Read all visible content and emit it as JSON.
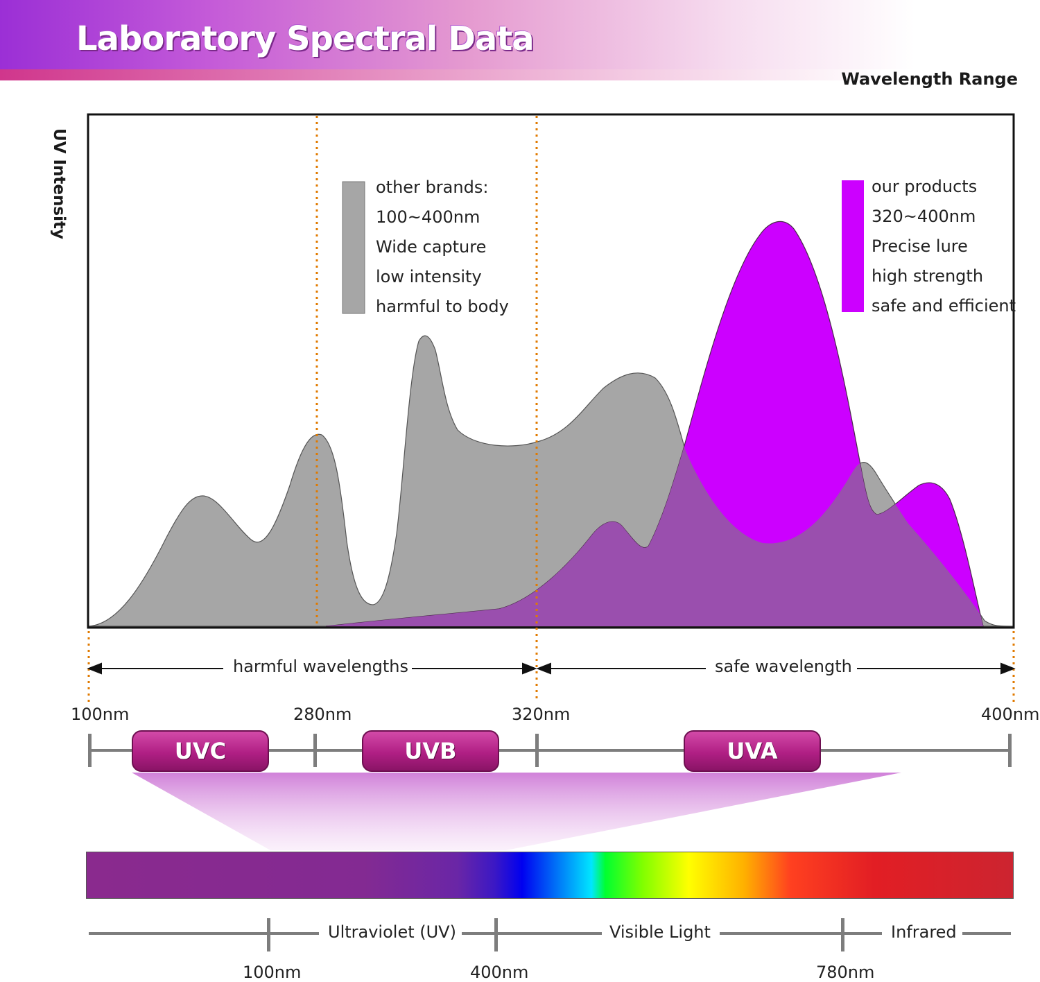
{
  "header": {
    "title": "Laboratory Spectral Data",
    "wavelength_range_label": "Wavelength Range"
  },
  "colors": {
    "other_brands": "#a6a6a6",
    "our_products": "#cc00ff",
    "overlap": "#9a4fae",
    "banner": "#9b2fd6",
    "pill": "#b01f84",
    "divider": "#e07a00"
  },
  "chart_data": {
    "type": "area",
    "ylabel": "UV Intensity",
    "xlabel": "Wavelength Range",
    "x_ticks": [
      "100nm",
      "280nm",
      "320nm",
      "400nm"
    ],
    "grid": false,
    "legend": [
      {
        "name": "other brands",
        "lines": [
          "other brands:",
          "100~400nm",
          "Wide capture",
          "low intensity",
          "harmful to body"
        ]
      },
      {
        "name": "our products",
        "lines": [
          "our products",
          "320~400nm",
          "Precise lure",
          "high strength",
          "safe and efficient"
        ]
      }
    ],
    "regions": [
      {
        "label": "harmful wavelengths",
        "from": "100nm",
        "to": "320nm"
      },
      {
        "label": "safe wavelength",
        "from": "320nm",
        "to": "400nm"
      }
    ],
    "bands": [
      {
        "label": "UVC"
      },
      {
        "label": "UVB"
      },
      {
        "label": "UVA"
      }
    ]
  },
  "spectrum": {
    "segments": [
      "Ultraviolet (UV)",
      "Visible Light",
      "Infrared"
    ],
    "ticks": [
      "100nm",
      "400nm",
      "780nm"
    ]
  }
}
